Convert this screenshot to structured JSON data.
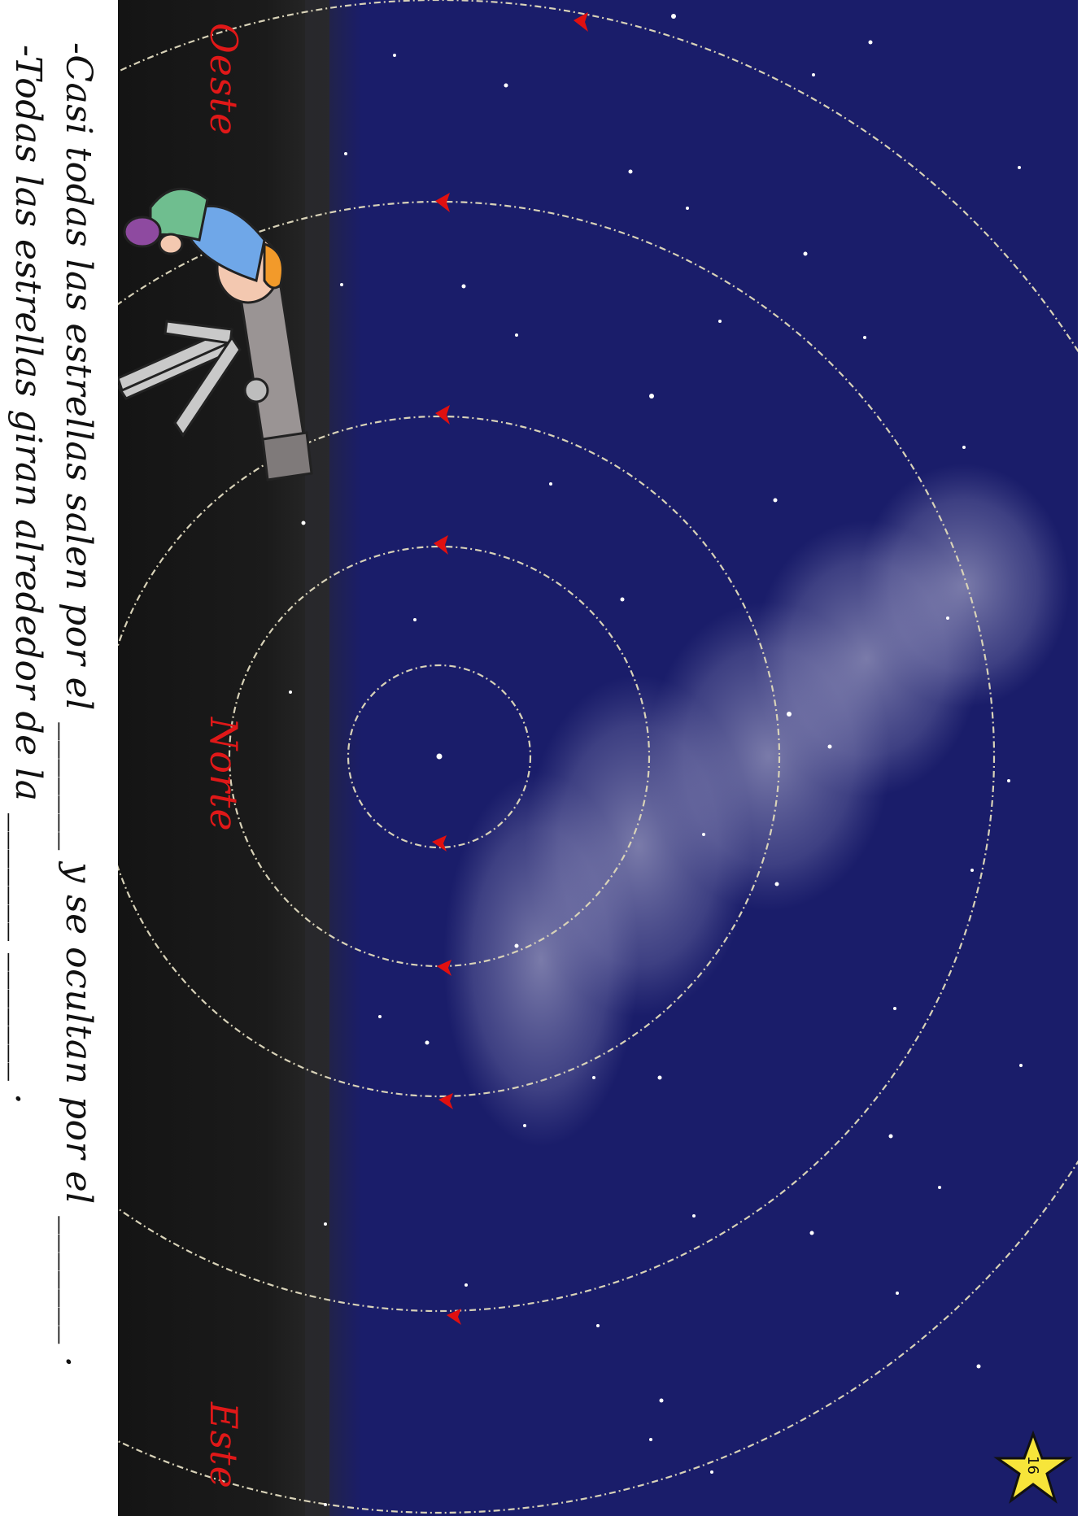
{
  "colors": {
    "sky": "#1a1d6a",
    "horizon": "#151515",
    "label_red": "#e01818",
    "orbit": "#d8d2b8",
    "arrow": "#e01010",
    "milky_way": "#c9c8de"
  },
  "directions": {
    "west": "Oeste",
    "north": "Norte",
    "east": "Este"
  },
  "worksheet": {
    "line1": "-Casi todas las estrellas salen por el _______ y se ocultan por el _______ .",
    "line2": "-Todas las estrellas giran alrededor de la _______ _______ ."
  },
  "illustration": {
    "figure": "child-with-telescope-icon",
    "pole_star": "pole-star-icon"
  },
  "page_badge": {
    "number": "16",
    "icon": "yellow-star-icon"
  }
}
